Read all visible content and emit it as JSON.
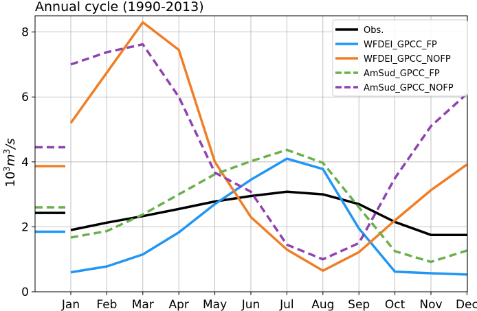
{
  "chart_data": {
    "type": "line",
    "title": "Annual cycle (1990-2013)",
    "xlabel": "",
    "ylabel": "10³m³/s",
    "categories": [
      "Jan",
      "Feb",
      "Mar",
      "Apr",
      "May",
      "Jun",
      "Jul",
      "Aug",
      "Sep",
      "Oct",
      "Nov",
      "Dec"
    ],
    "ylim": [
      0,
      8.5
    ],
    "yticks": [
      0,
      2,
      4,
      6,
      8
    ],
    "grid": true,
    "legend_position": "top-right",
    "series": [
      {
        "name": "Obs.",
        "color": "#000000",
        "style": "solid",
        "values": [
          1.9,
          2.13,
          2.33,
          2.55,
          2.78,
          2.95,
          3.08,
          3.0,
          2.7,
          2.15,
          1.75,
          1.75
        ],
        "annual_mean": 2.43
      },
      {
        "name": "WFDEI_GPCC_FP",
        "color": "#2196f3",
        "style": "solid",
        "values": [
          0.6,
          0.78,
          1.15,
          1.83,
          2.7,
          3.45,
          4.1,
          3.78,
          1.95,
          0.62,
          0.57,
          0.53
        ],
        "annual_mean": 1.85
      },
      {
        "name": "WFDEI_GPCC_NOFP",
        "color": "#f07e26",
        "style": "solid",
        "values": [
          5.2,
          6.75,
          8.3,
          7.45,
          4.0,
          2.3,
          1.3,
          0.65,
          1.22,
          2.2,
          3.13,
          3.92
        ],
        "annual_mean": 3.87
      },
      {
        "name": "AmSud_GPCC_FP",
        "color": "#6ab04c",
        "style": "dashed",
        "values": [
          1.67,
          1.87,
          2.38,
          3.0,
          3.62,
          4.02,
          4.37,
          3.97,
          2.6,
          1.25,
          0.92,
          1.27
        ],
        "annual_mean": 2.6
      },
      {
        "name": "AmSud_GPCC_NOFP",
        "color": "#8e44ad",
        "style": "dashed",
        "values": [
          7.0,
          7.38,
          7.62,
          6.0,
          3.67,
          3.08,
          1.45,
          1.0,
          1.5,
          3.5,
          5.1,
          6.1
        ],
        "annual_mean": 4.45
      }
    ]
  }
}
